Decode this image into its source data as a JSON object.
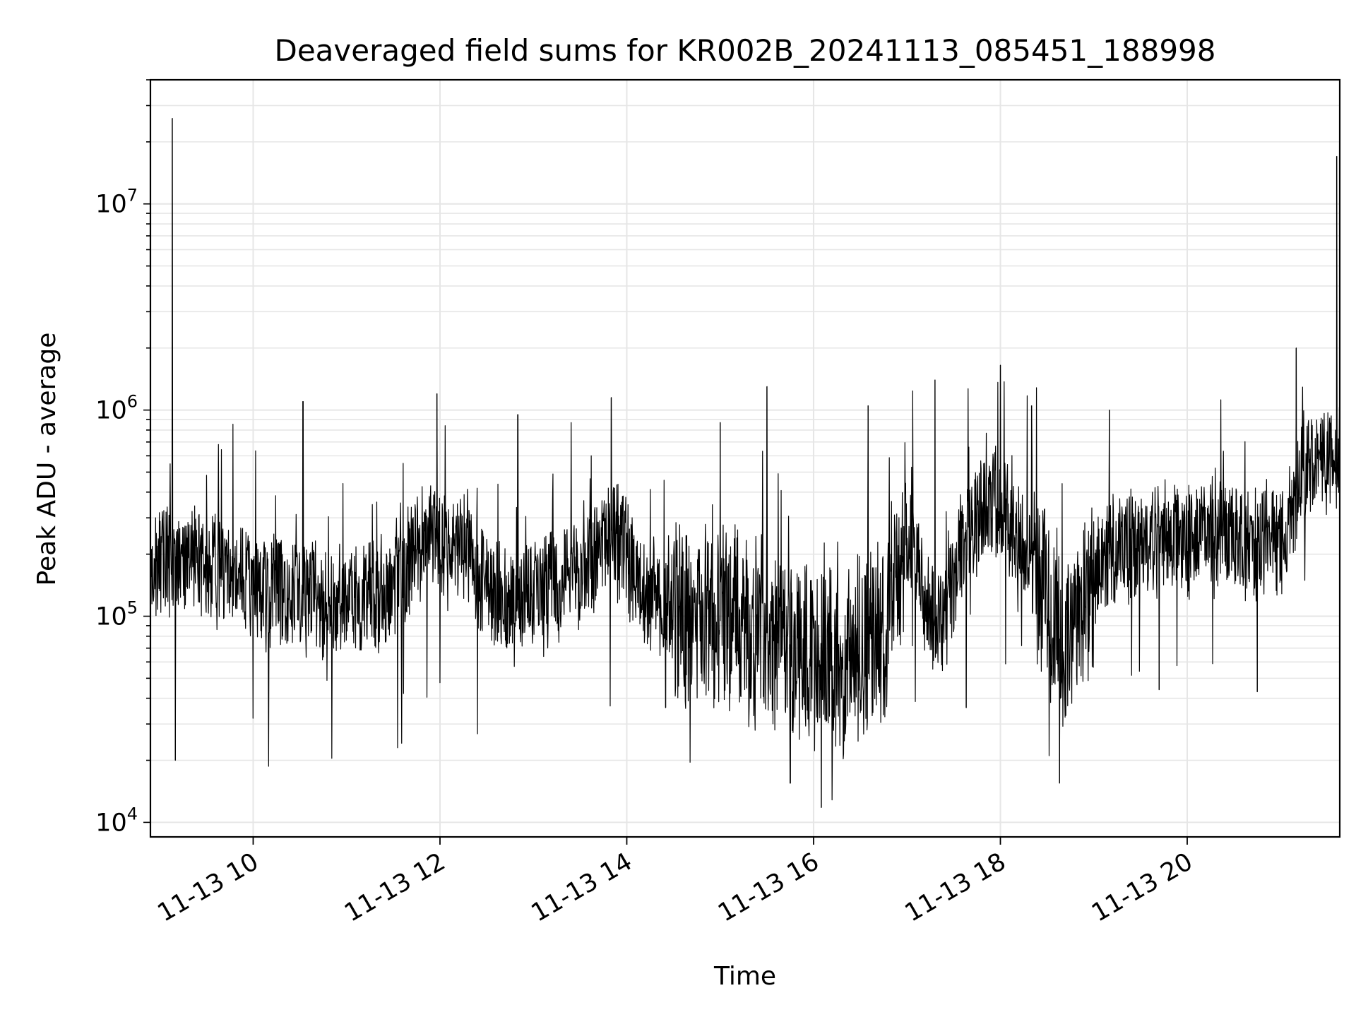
{
  "chart_data": {
    "type": "line",
    "title": "Deaveraged field sums for KR002B_20241113_085451_188998",
    "xlabel": "Time",
    "ylabel": "Peak ADU - average",
    "yscale": "log",
    "xlim": [
      "2024-11-13 08:54",
      "2024-11-13 21:38"
    ],
    "ylim": [
      8500,
      40000000
    ],
    "x_ticks": [
      "11-13 10",
      "11-13 12",
      "11-13 14",
      "11-13 16",
      "11-13 18",
      "11-13 20"
    ],
    "y_ticks": [
      {
        "base": "10",
        "exp": "4"
      },
      {
        "base": "10",
        "exp": "5"
      },
      {
        "base": "10",
        "exp": "6"
      },
      {
        "base": "10",
        "exp": "7"
      }
    ],
    "grid": true,
    "line_color": "#000000",
    "grid_color": "#e6e6e6",
    "trend": [
      [
        "08:54",
        180000
      ],
      [
        "09:15",
        200000
      ],
      [
        "09:40",
        170000
      ],
      [
        "10:00",
        140000
      ],
      [
        "10:30",
        130000
      ],
      [
        "11:00",
        110000
      ],
      [
        "11:30",
        130000
      ],
      [
        "11:50",
        240000
      ],
      [
        "12:20",
        200000
      ],
      [
        "12:40",
        110000
      ],
      [
        "13:00",
        130000
      ],
      [
        "13:30",
        170000
      ],
      [
        "13:50",
        260000
      ],
      [
        "14:10",
        140000
      ],
      [
        "14:40",
        100000
      ],
      [
        "15:20",
        90000
      ],
      [
        "15:50",
        70000
      ],
      [
        "16:20",
        60000
      ],
      [
        "16:45",
        90000
      ],
      [
        "17:00",
        250000
      ],
      [
        "17:20",
        80000
      ],
      [
        "17:40",
        300000
      ],
      [
        "18:00",
        350000
      ],
      [
        "18:20",
        200000
      ],
      [
        "18:40",
        70000
      ],
      [
        "19:10",
        200000
      ],
      [
        "19:40",
        250000
      ],
      [
        "20:10",
        240000
      ],
      [
        "20:40",
        230000
      ],
      [
        "21:00",
        240000
      ],
      [
        "21:15",
        550000
      ],
      [
        "21:38",
        600000
      ]
    ],
    "spikes": [
      [
        "09:08",
        26000000
      ],
      [
        "09:10",
        20000
      ],
      [
        "10:32",
        1100000
      ],
      [
        "11:58",
        1200000
      ],
      [
        "12:50",
        950000
      ],
      [
        "13:50",
        1150000
      ],
      [
        "14:25",
        36000
      ],
      [
        "15:00",
        870000
      ],
      [
        "15:30",
        1300000
      ],
      [
        "15:45",
        15500
      ],
      [
        "16:05",
        11800
      ],
      [
        "16:35",
        1050000
      ],
      [
        "17:18",
        1400000
      ],
      [
        "17:38",
        36000
      ],
      [
        "18:00",
        1650000
      ],
      [
        "18:20",
        1050000
      ],
      [
        "18:38",
        15500
      ],
      [
        "19:10",
        1000000
      ],
      [
        "19:42",
        44000
      ],
      [
        "20:45",
        43000
      ],
      [
        "21:10",
        2000000
      ],
      [
        "21:36",
        17000000
      ]
    ]
  }
}
